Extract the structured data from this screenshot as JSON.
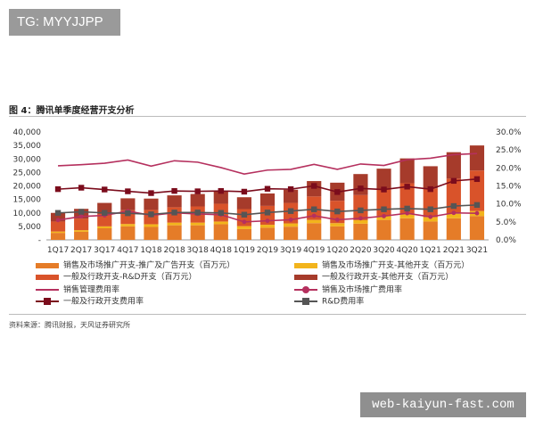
{
  "top_tag": "TG: MYYJJPP",
  "figure_title": "图 4：腾讯单季度经营开支分析",
  "source_note": "资料来源：腾讯财报，天风证券研究所",
  "watermark": "web-kaiyun-fast.com",
  "colors": {
    "ad_promo": "#e57c28",
    "other_sales": "#f2b41c",
    "rd": "#d9532a",
    "other_admin": "#a63b2b",
    "sales_ratio": "#b5305e",
    "admin_ratio": "#7b0c1c",
    "rd_ratio": "#555555"
  },
  "chart_data": {
    "type": "bar",
    "stacked": true,
    "categories": [
      "1Q17",
      "2Q17",
      "3Q17",
      "4Q17",
      "1Q18",
      "2Q18",
      "3Q18",
      "4Q18",
      "1Q19",
      "2Q19",
      "3Q19",
      "4Q19",
      "1Q20",
      "2Q20",
      "3Q20",
      "4Q20",
      "1Q21",
      "2Q21",
      "3Q21"
    ],
    "y_left": {
      "min": 0,
      "max": 40000,
      "ticks": [
        "-",
        "5,000",
        "10,000",
        "15,000",
        "20,000",
        "25,000",
        "30,000",
        "35,000",
        "40,000"
      ]
    },
    "y_right": {
      "min": 0,
      "max": 30,
      "ticks": [
        "0.0%",
        "5.0%",
        "10.0%",
        "15.0%",
        "20.0%",
        "25.0%",
        "30.0%"
      ]
    },
    "bar_series": [
      {
        "name": "销售及市场推广开支-推广及广告开支（百万元）",
        "color_key": "ad_promo",
        "values": [
          2600,
          3000,
          4300,
          5000,
          4800,
          5400,
          5400,
          5800,
          4000,
          4500,
          4900,
          6200,
          5000,
          6000,
          7400,
          8000,
          6800,
          8000,
          8800
        ]
      },
      {
        "name": "销售及市场推广开支-其他开支（百万元）",
        "color_key": "other_sales",
        "values": [
          500,
          600,
          700,
          900,
          1000,
          1000,
          1000,
          1000,
          1100,
          1100,
          1200,
          1200,
          1200,
          1300,
          1400,
          1600,
          1600,
          1700,
          1900
        ]
      },
      {
        "name": "一般及行政开支-R&D开支（百万元）",
        "color_key": "rd",
        "values": [
          3700,
          4300,
          4600,
          5100,
          5300,
          5700,
          6000,
          6600,
          6300,
          7000,
          7600,
          8700,
          8300,
          9300,
          10000,
          11400,
          10700,
          13000,
          15000
        ]
      },
      {
        "name": "一般及行政开支-其他开支（百万元）",
        "color_key": "other_admin",
        "values": [
          3200,
          3600,
          4100,
          4400,
          4200,
          4400,
          4600,
          4800,
          4400,
          4600,
          4900,
          5700,
          6700,
          7800,
          7600,
          9200,
          8200,
          9800,
          9300
        ]
      }
    ],
    "line_series": [
      {
        "name": "销售管理费用率",
        "color_key": "sales_ratio",
        "marker": "none",
        "values": [
          20.6,
          20.9,
          21.3,
          22.2,
          20.5,
          22.0,
          21.6,
          20.1,
          18.3,
          19.4,
          19.6,
          21.0,
          19.6,
          21.1,
          20.7,
          22.3,
          22.7,
          23.7,
          24.0
        ]
      },
      {
        "name": "销售及市场推广费用率",
        "color_key": "sales_ratio",
        "marker": "dot",
        "values": [
          5.5,
          6.5,
          6.8,
          8.0,
          6.8,
          7.5,
          7.2,
          7.0,
          5.0,
          5.3,
          5.6,
          6.7,
          5.6,
          6.0,
          6.6,
          7.4,
          6.4,
          7.5,
          7.4
        ]
      },
      {
        "name": "一般及行政开支费用率",
        "color_key": "admin_ratio",
        "marker": "square",
        "values": [
          14.1,
          14.5,
          14.0,
          13.5,
          13.0,
          13.6,
          13.5,
          13.6,
          13.4,
          14.2,
          14.1,
          15.0,
          13.3,
          14.3,
          14.0,
          14.8,
          14.1,
          16.4,
          16.9
        ]
      },
      {
        "name": "R&D费用率",
        "color_key": "rd_ratio",
        "marker": "square",
        "values": [
          7.5,
          7.8,
          7.5,
          7.4,
          7.1,
          7.6,
          7.6,
          7.5,
          7.0,
          7.6,
          8.0,
          8.5,
          7.9,
          8.2,
          8.5,
          8.7,
          8.5,
          9.4,
          9.7
        ]
      }
    ]
  }
}
